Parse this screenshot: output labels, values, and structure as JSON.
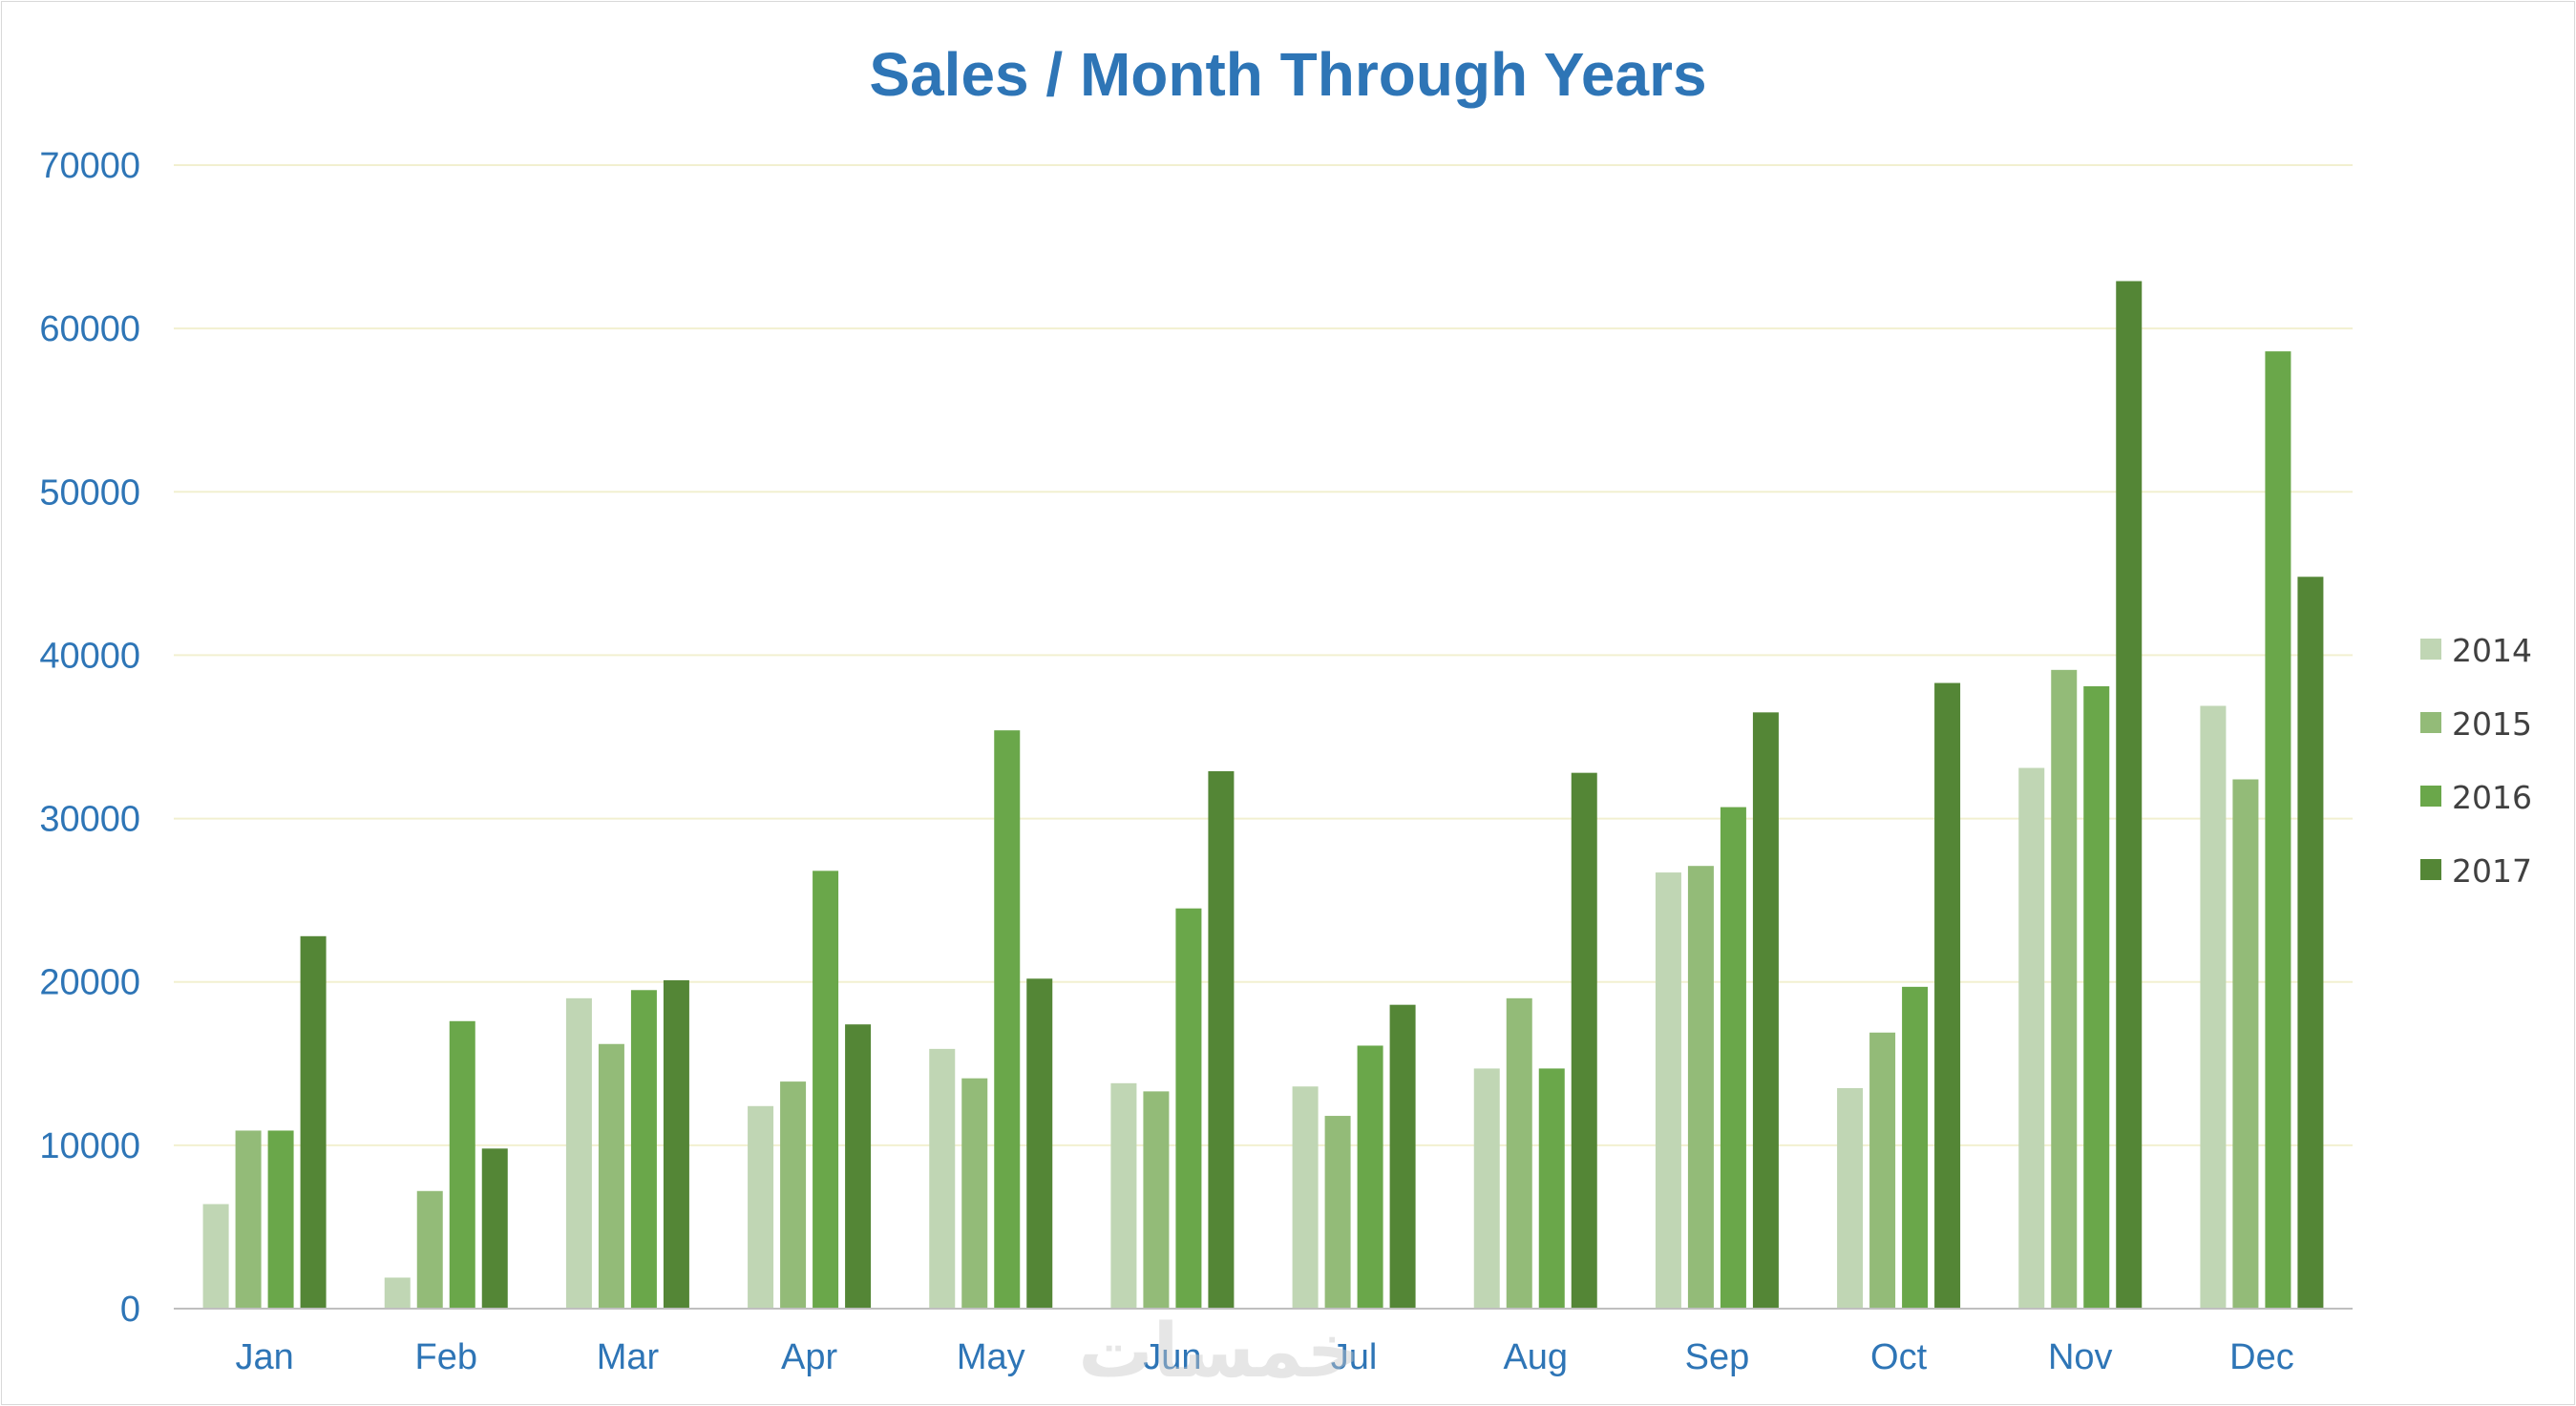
{
  "chart_data": {
    "type": "bar",
    "title": "Sales / Month Through Years",
    "xlabel": "",
    "ylabel": "",
    "ylim": [
      0,
      70000
    ],
    "yticks": [
      "0",
      "10000",
      "20000",
      "30000",
      "40000",
      "50000",
      "60000",
      "70000"
    ],
    "categories": [
      "Jan",
      "Feb",
      "Mar",
      "Apr",
      "May",
      "Jun",
      "Jul",
      "Aug",
      "Sep",
      "Oct",
      "Nov",
      "Dec"
    ],
    "series": [
      {
        "name": "2014",
        "color": "#c0d6b4",
        "values": [
          6400,
          1900,
          19000,
          12400,
          15900,
          13800,
          13600,
          14700,
          26700,
          13500,
          33100,
          36900
        ]
      },
      {
        "name": "2015",
        "color": "#93bb78",
        "values": [
          10900,
          7200,
          16200,
          13900,
          14100,
          13300,
          11800,
          19000,
          27100,
          16900,
          39100,
          32400
        ]
      },
      {
        "name": "2016",
        "color": "#6aa74a",
        "values": [
          10900,
          17600,
          19500,
          26800,
          35400,
          24500,
          16100,
          14700,
          30700,
          19700,
          38100,
          58600
        ]
      },
      {
        "name": "2017",
        "color": "#548636",
        "values": [
          22800,
          9800,
          20100,
          17400,
          20200,
          32900,
          18600,
          32800,
          36500,
          38300,
          62900,
          44800
        ]
      }
    ],
    "grid": true,
    "gridline_color": "#f2f0d0",
    "legend_position": "right",
    "watermark": "خمسات"
  }
}
